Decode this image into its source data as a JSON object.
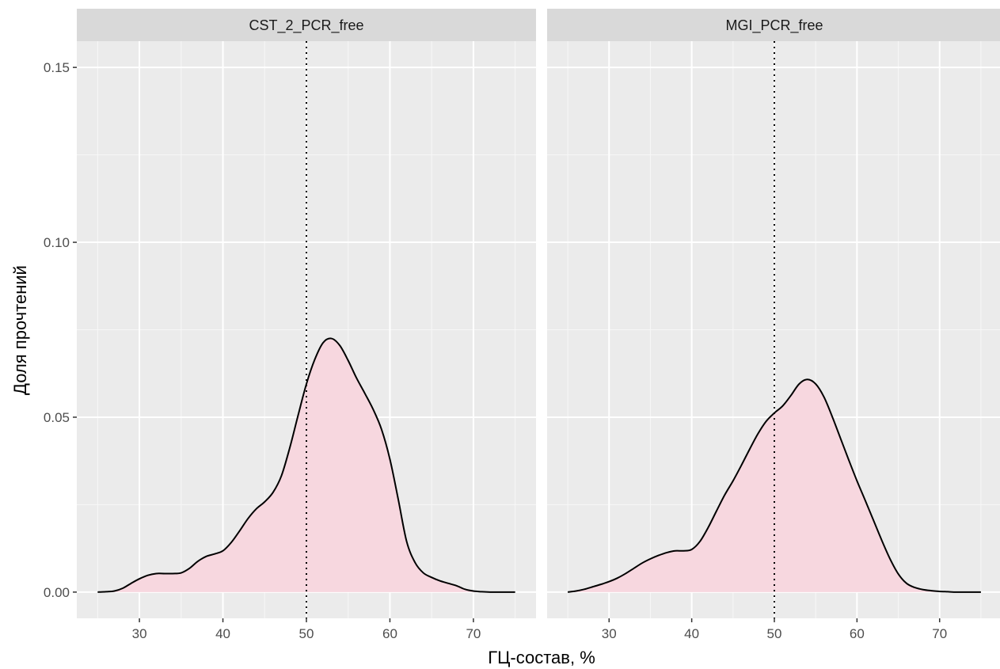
{
  "chart_data": {
    "type": "area",
    "xlabel": "ГЦ-состав, %",
    "ylabel": "Доля прочтений",
    "xlim": [
      22.5,
      77.5
    ],
    "ylim": [
      -0.0075,
      0.1575
    ],
    "x_ticks": [
      30,
      40,
      50,
      60,
      70
    ],
    "x_tick_labels": [
      "30",
      "40",
      "50",
      "60",
      "70"
    ],
    "y_ticks": [
      0.0,
      0.05,
      0.1,
      0.15
    ],
    "y_tick_labels": [
      "0.00",
      "0.05",
      "0.10",
      "0.15"
    ],
    "reference_line": {
      "x": 50,
      "style": "dotted"
    },
    "grid": true,
    "fill_color": "#f7d7df",
    "line_color": "#000000",
    "panels": [
      {
        "name": "CST_2_PCR_free",
        "x": [
          25,
          26,
          27,
          28,
          29,
          30,
          31,
          32,
          33,
          34,
          35,
          36,
          37,
          38,
          39,
          40,
          41,
          42,
          43,
          44,
          45,
          46,
          47,
          48,
          49,
          50,
          51,
          52,
          53,
          54,
          55,
          56,
          57,
          58,
          59,
          60,
          61,
          62,
          63,
          64,
          65,
          66,
          67,
          68,
          69,
          70,
          71,
          72,
          73,
          74,
          75
        ],
        "values": [
          0.0,
          0.0001,
          0.0003,
          0.0011,
          0.0025,
          0.0038,
          0.0048,
          0.0053,
          0.0053,
          0.0053,
          0.0055,
          0.0068,
          0.0088,
          0.0102,
          0.0109,
          0.0118,
          0.0142,
          0.0175,
          0.021,
          0.0238,
          0.0258,
          0.0285,
          0.0332,
          0.0412,
          0.0505,
          0.0595,
          0.0665,
          0.0713,
          0.0725,
          0.0705,
          0.0662,
          0.0612,
          0.0568,
          0.0522,
          0.0465,
          0.038,
          0.0265,
          0.0145,
          0.0085,
          0.0055,
          0.0042,
          0.0032,
          0.0025,
          0.0018,
          0.0008,
          0.0003,
          0.0001,
          0.0,
          0.0,
          0.0,
          0.0
        ]
      },
      {
        "name": "MGI_PCR_free",
        "x": [
          25,
          26,
          27,
          28,
          29,
          30,
          31,
          32,
          33,
          34,
          35,
          36,
          37,
          38,
          39,
          40,
          41,
          42,
          43,
          44,
          45,
          46,
          47,
          48,
          49,
          50,
          51,
          52,
          53,
          54,
          55,
          56,
          57,
          58,
          59,
          60,
          61,
          62,
          63,
          64,
          65,
          66,
          67,
          68,
          69,
          70,
          71,
          72,
          73,
          74,
          75
        ],
        "values": [
          0.0,
          0.0003,
          0.0008,
          0.0015,
          0.0022,
          0.003,
          0.004,
          0.0053,
          0.0068,
          0.0083,
          0.0095,
          0.0105,
          0.0113,
          0.0118,
          0.0118,
          0.0122,
          0.0145,
          0.0185,
          0.0232,
          0.0278,
          0.0318,
          0.0362,
          0.0408,
          0.0452,
          0.0488,
          0.0512,
          0.0532,
          0.0562,
          0.0595,
          0.0608,
          0.0595,
          0.0558,
          0.0502,
          0.044,
          0.0378,
          0.0318,
          0.0262,
          0.0205,
          0.0148,
          0.0095,
          0.0052,
          0.0025,
          0.0013,
          0.0007,
          0.0004,
          0.0002,
          0.0001,
          0.0,
          0.0,
          0.0,
          0.0
        ]
      }
    ]
  }
}
